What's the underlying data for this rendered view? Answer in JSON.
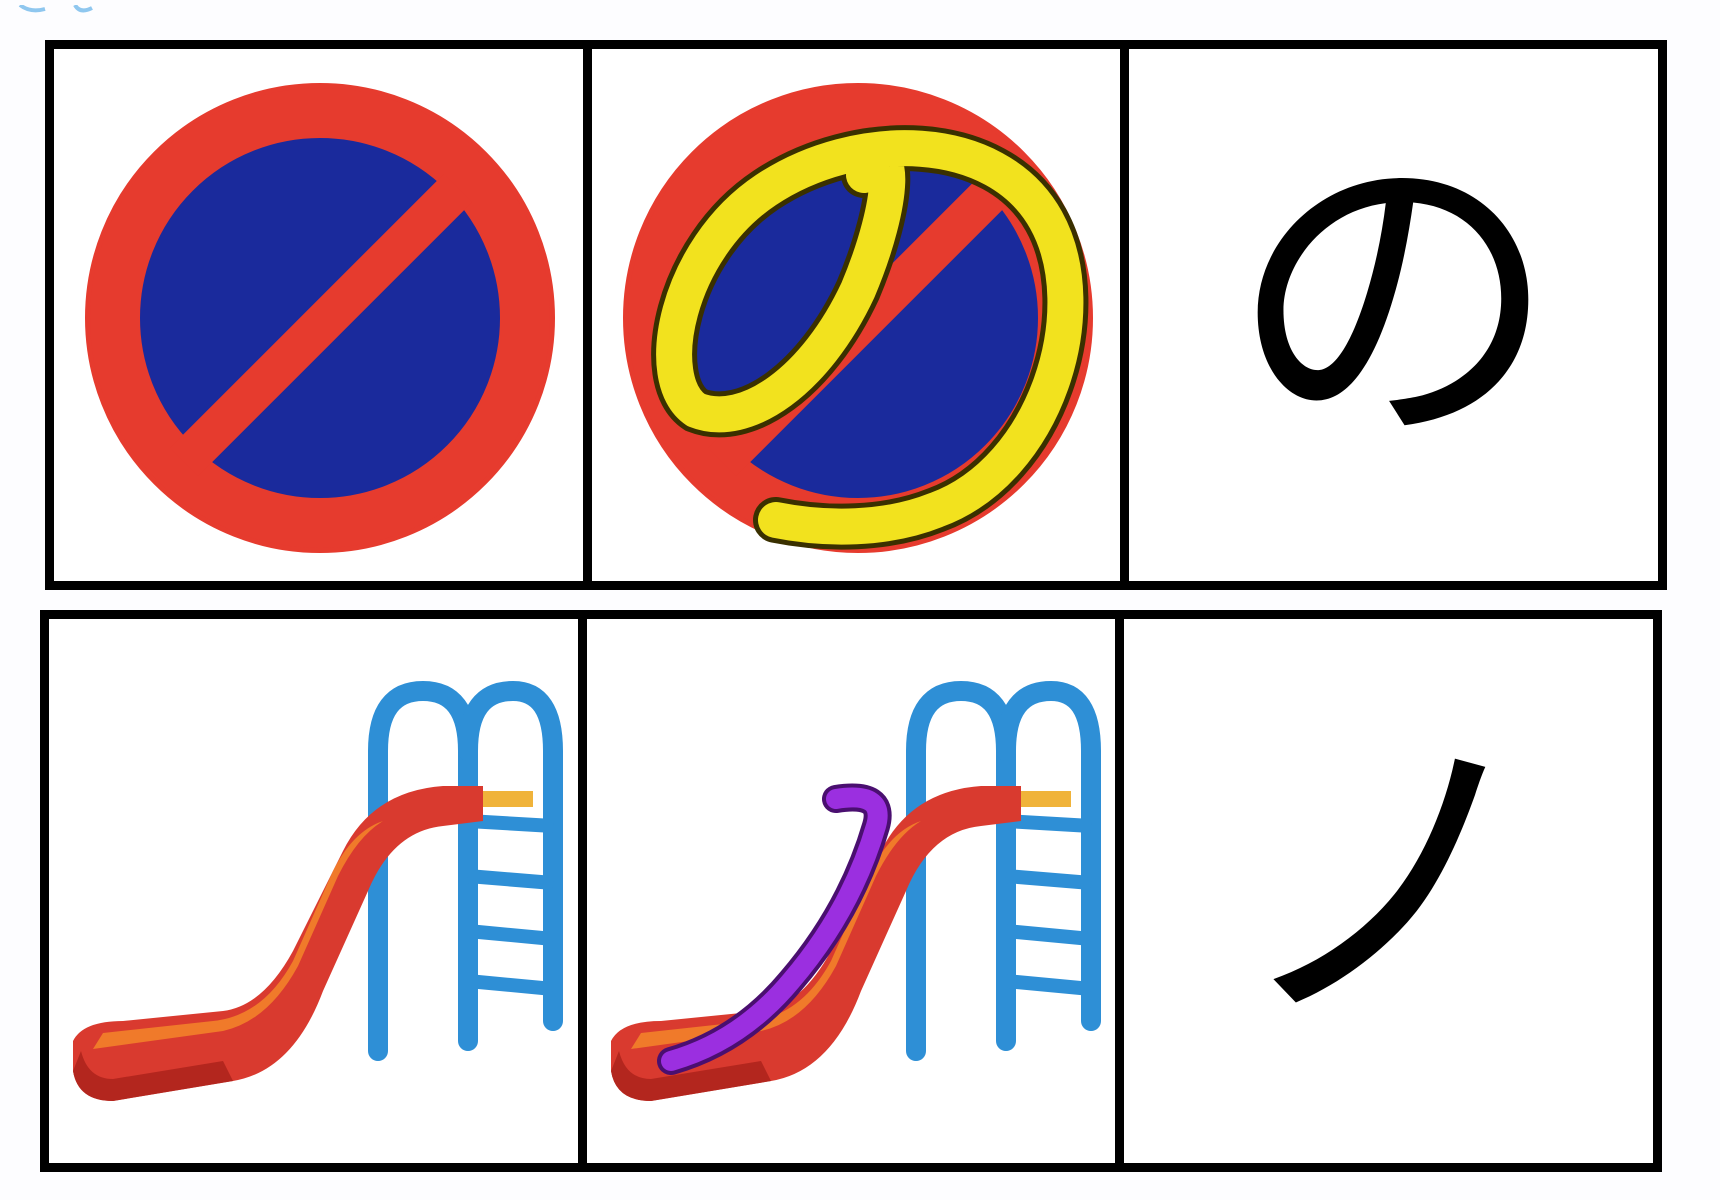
{
  "colors": {
    "sign_red": "#e63b2e",
    "sign_blue": "#1a2a9c",
    "highlight_yellow": "#f2e21e",
    "slide_red": "#d93a2f",
    "slide_orange": "#f07a2a",
    "ladder_blue": "#2e8fd6",
    "highlight_purple": "#9b2fe0"
  },
  "rows": [
    {
      "cells": [
        {
          "icon": "no-parking-sign-icon"
        },
        {
          "icon": "no-parking-sign-traced-icon"
        },
        {
          "kana": "の"
        }
      ]
    },
    {
      "cells": [
        {
          "icon": "playground-slide-icon"
        },
        {
          "icon": "playground-slide-traced-icon"
        },
        {
          "kana": "ノ"
        }
      ]
    }
  ]
}
